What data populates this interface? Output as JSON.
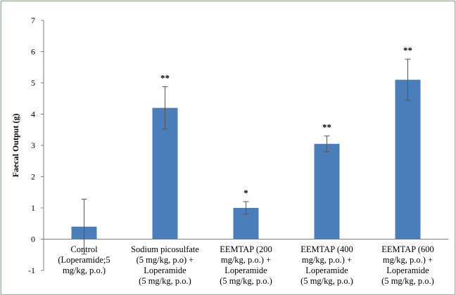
{
  "chart_data": {
    "type": "bar",
    "ylabel": "Faecal Output (g)",
    "ylim": [
      -1,
      7
    ],
    "yticks": [
      "-1",
      "0",
      "1",
      "2",
      "3",
      "4",
      "5",
      "6",
      "7"
    ],
    "categories": [
      [
        "Control",
        "(Loperamide;5",
        "mg/kg, p.o.)"
      ],
      [
        "Sodium picosulfate",
        "(5 mg/kg, p.o) +",
        "Loperamide",
        "(5 mg/kg, p.o.)"
      ],
      [
        "EEMTAP (200",
        "mg/kg, p.o.) +",
        "Loperamide",
        "(5 mg/kg, p.o.)"
      ],
      [
        "EEMTAP (400",
        "mg/kg, p.o.) +",
        "Loperamide",
        "(5 mg/kg, p.o.)"
      ],
      [
        "EEMTAP (600",
        "mg/kg, p.o.) +",
        "Loperamide",
        "(5 mg/kg, p.o.)"
      ]
    ],
    "values": [
      0.4,
      4.2,
      1.0,
      3.05,
      5.1
    ],
    "errors": [
      0.88,
      0.68,
      0.2,
      0.25,
      0.66
    ],
    "significance": [
      "",
      "**",
      "*",
      "**",
      "**"
    ],
    "bar_color": "#4a7ebb",
    "grid": false
  }
}
